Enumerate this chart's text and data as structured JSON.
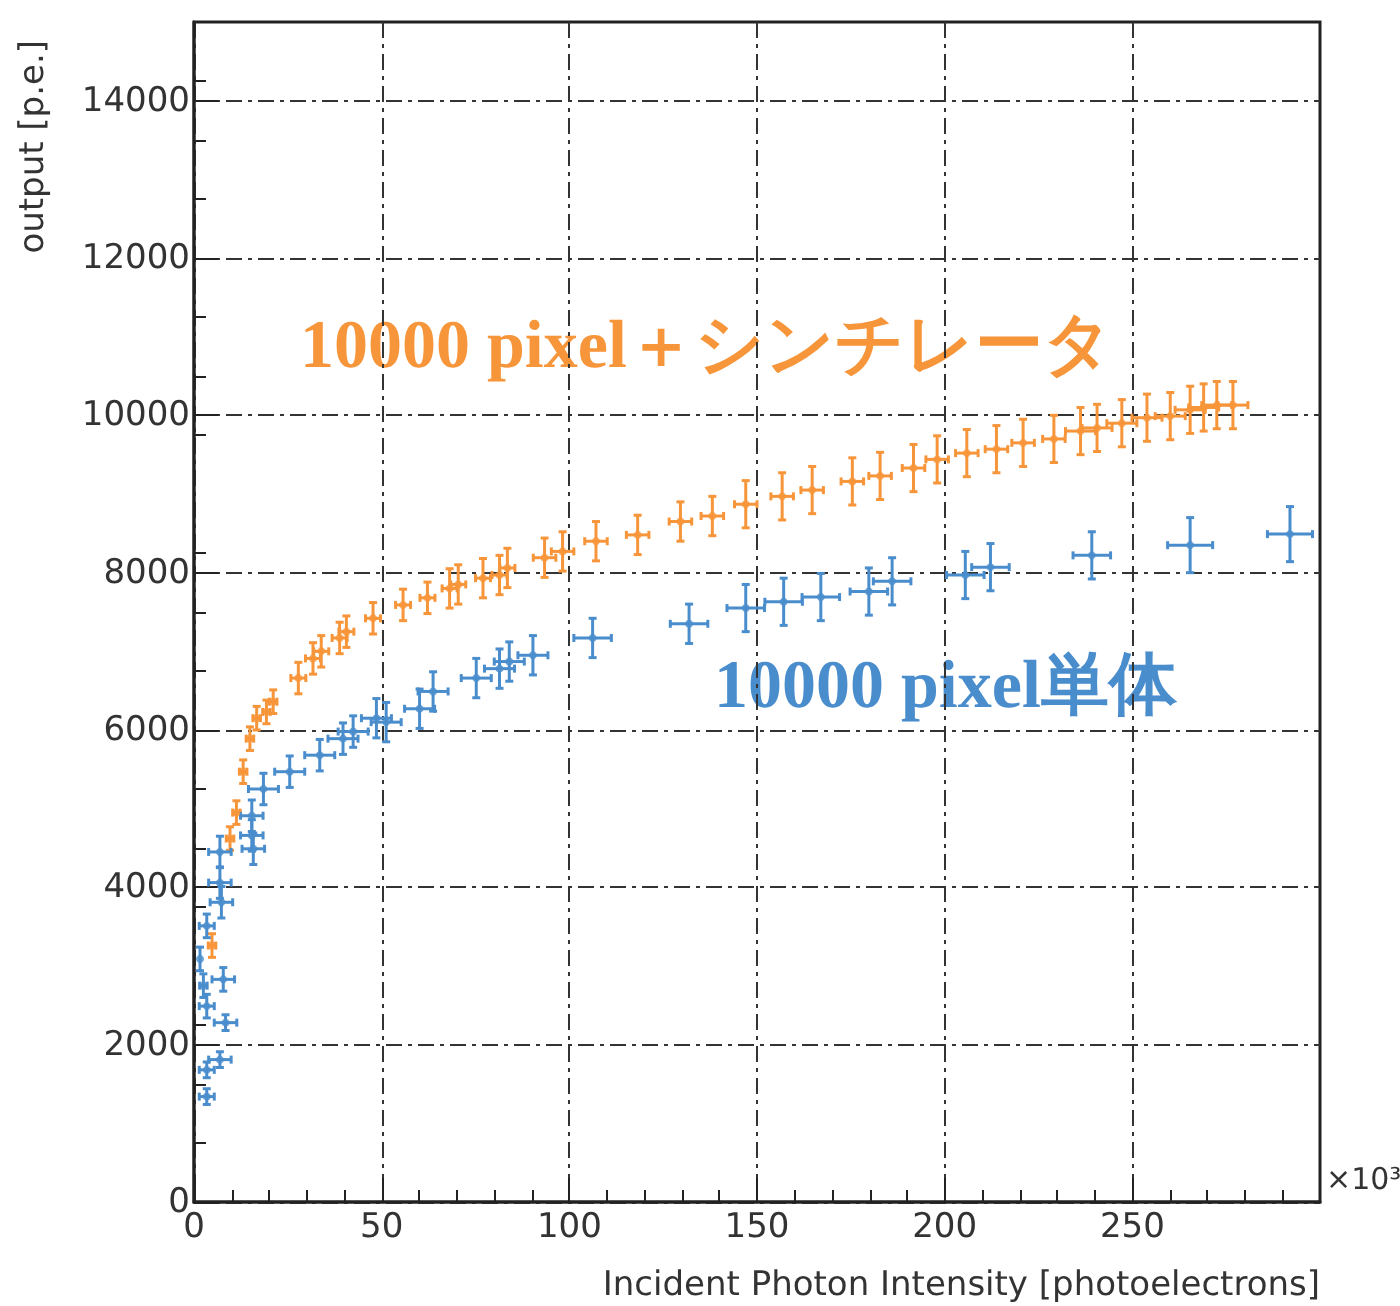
{
  "chart_data": {
    "type": "scatter",
    "xlabel": "Incident Photon Intensity [photoelectrons]",
    "ylabel": "output [p.e.]",
    "annotations": [
      "×10³"
    ],
    "xlim": [
      0,
      300
    ],
    "xticks": [
      0,
      50,
      100,
      150,
      200,
      250
    ],
    "ylim": [
      0,
      15000
    ],
    "yticks": [
      0,
      2000,
      4000,
      6000,
      8000,
      10000,
      12000,
      14000
    ],
    "grid": true,
    "marker": "circle",
    "legend": false,
    "series": [
      {
        "name": "10000 pixel＋シンチレータ",
        "color": "#f7953a",
        "x": [
          4.8,
          9.6,
          11.3,
          13.1,
          14.9,
          16.7,
          19.3,
          21.1,
          27.8,
          31.7,
          33.9,
          38.8,
          40.6,
          47.7,
          55.7,
          62.2,
          68.1,
          70.4,
          77,
          81.4,
          83.5,
          93.4,
          98.2,
          107.1,
          118.2,
          129.6,
          138.1,
          147,
          156.7,
          164.7,
          175.4,
          182.8,
          191.7,
          198,
          205.9,
          213.8,
          220.9,
          229.1,
          236.2,
          240.6,
          247.2,
          253.9,
          260.1,
          265.4,
          269,
          272.5,
          276.8
        ],
        "values": [
          3260,
          4620,
          4950,
          5470,
          5890,
          6150,
          6230,
          6360,
          6660,
          6910,
          7000,
          7170,
          7250,
          7420,
          7590,
          7680,
          7800,
          7850,
          7930,
          7970,
          8060,
          8190,
          8270,
          8400,
          8480,
          8650,
          8720,
          8870,
          8970,
          9050,
          9160,
          9230,
          9330,
          9440,
          9520,
          9570,
          9650,
          9700,
          9800,
          9840,
          9900,
          9970,
          9990,
          10070,
          10100,
          10130,
          10130
        ],
        "errors": [
          150,
          150,
          150,
          150,
          150,
          150,
          150,
          150,
          200,
          200,
          200,
          200,
          200,
          200,
          200,
          200,
          250,
          250,
          250,
          250,
          250,
          250,
          250,
          250,
          250,
          250,
          250,
          300,
          300,
          300,
          300,
          300,
          300,
          300,
          300,
          300,
          300,
          300,
          300,
          300,
          300,
          300,
          300,
          300,
          300,
          300,
          300
        ],
        "xerrors": [
          1,
          1,
          1,
          1,
          1,
          1,
          1,
          1,
          2,
          2,
          2,
          2,
          2,
          2,
          2,
          2,
          2,
          2,
          2,
          2,
          2,
          3,
          3,
          3,
          3,
          3,
          3,
          3,
          3,
          3,
          3,
          3,
          3,
          3,
          3,
          3,
          3,
          3,
          4,
          4,
          4,
          4,
          4,
          4,
          4,
          4,
          4
        ]
      },
      {
        "name": "10000 pixel単体",
        "color": "#4a8dcd",
        "x": [
          3.4,
          3.4,
          6.9,
          8.4,
          3.4,
          2.5,
          7.8,
          1.6,
          3.4,
          7.3,
          6.9,
          6.9,
          15.8,
          15.4,
          15.4,
          18.5,
          25.5,
          33.5,
          39.7,
          42.4,
          48.6,
          51.2,
          60.1,
          63.7,
          75.2,
          81.4,
          84,
          90.3,
          106.2,
          131.9,
          147,
          157.1,
          167,
          179.8,
          186,
          205.5,
          212.2,
          239.2,
          265.4,
          292
        ],
        "values": [
          1340,
          1680,
          1810,
          2280,
          2490,
          2750,
          2830,
          3090,
          3510,
          3810,
          4060,
          4450,
          4490,
          4660,
          4910,
          5250,
          5470,
          5680,
          5890,
          5980,
          6150,
          6100,
          6270,
          6490,
          6660,
          6780,
          6870,
          6950,
          7170,
          7350,
          7550,
          7630,
          7690,
          7760,
          7890,
          7970,
          8070,
          8220,
          8350,
          8490
        ],
        "errors": [
          100,
          100,
          100,
          100,
          150,
          150,
          150,
          150,
          150,
          200,
          200,
          200,
          200,
          200,
          200,
          200,
          200,
          200,
          200,
          200,
          250,
          250,
          250,
          250,
          250,
          250,
          250,
          250,
          250,
          250,
          300,
          300,
          300,
          300,
          300,
          300,
          300,
          300,
          350,
          350
        ],
        "xerrors": [
          2,
          2,
          3,
          3,
          2,
          1,
          3,
          null,
          2,
          3,
          3,
          3,
          3,
          3,
          3,
          4,
          4,
          4,
          4,
          4,
          4,
          4,
          4,
          4,
          4,
          4,
          4,
          4,
          5,
          5,
          5,
          5,
          5,
          5,
          5,
          5,
          5,
          5,
          6,
          6
        ]
      }
    ]
  }
}
